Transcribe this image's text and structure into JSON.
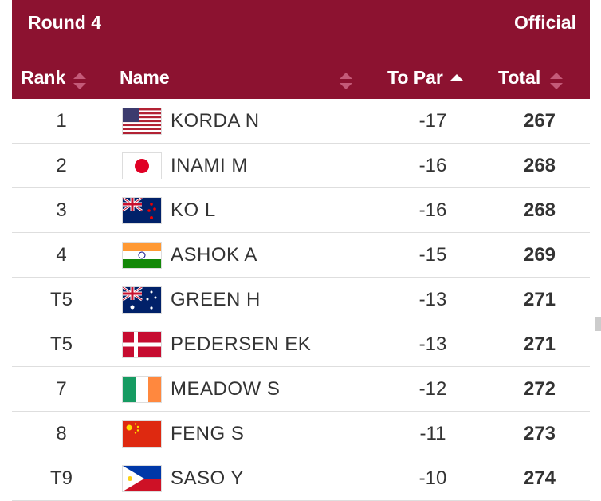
{
  "header": {
    "round": "Round 4",
    "status": "Official"
  },
  "columns": [
    "Rank",
    "Name",
    "To Par",
    "Total"
  ],
  "rows": [
    [
      "1",
      "KORDA N",
      "-17",
      "267"
    ],
    [
      "2",
      "INAMI M",
      "-16",
      "268"
    ],
    [
      "3",
      "KO L",
      "-16",
      "268"
    ],
    [
      "4",
      "ASHOK A",
      "-15",
      "269"
    ],
    [
      "T5",
      "GREEN H",
      "-13",
      "271"
    ],
    [
      "T5",
      "PEDERSEN EK",
      "-13",
      "271"
    ],
    [
      "7",
      "MEADOW S",
      "-12",
      "272"
    ],
    [
      "8",
      "FENG S",
      "-11",
      "273"
    ],
    [
      "T9",
      "SASO Y",
      "-10",
      "274"
    ]
  ]
}
